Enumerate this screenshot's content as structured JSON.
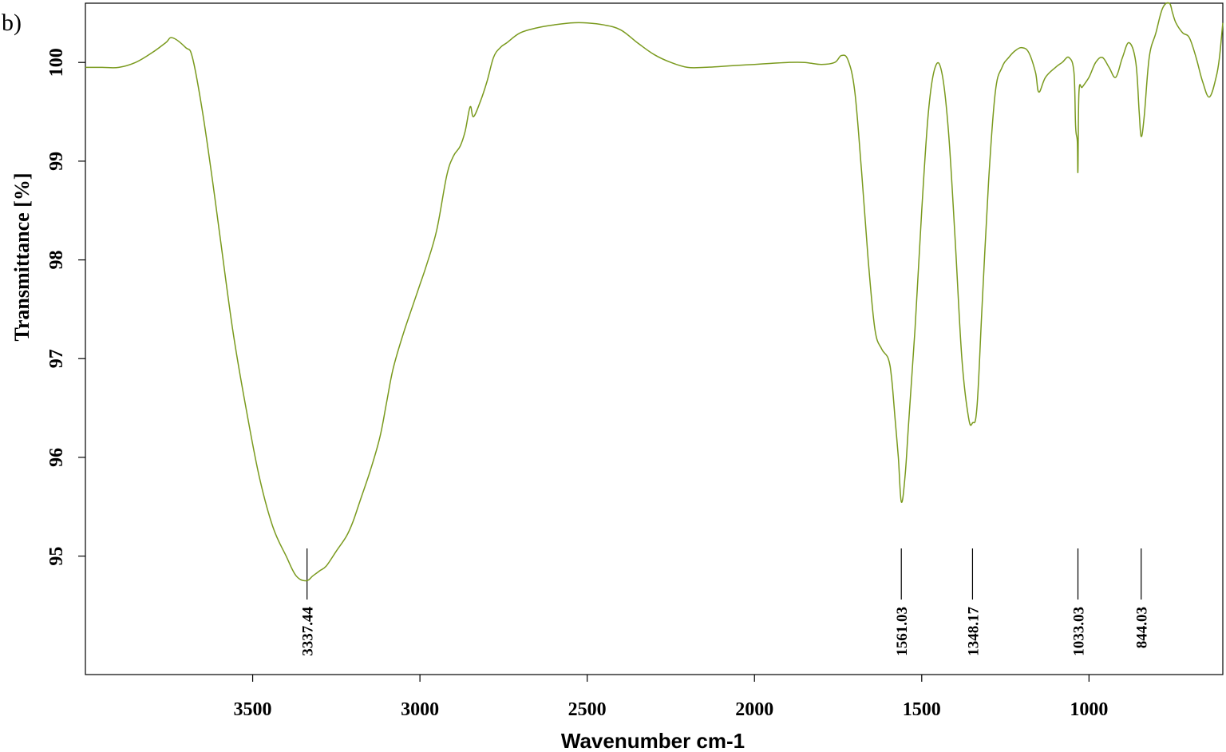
{
  "panel_label": "b)",
  "chart_data": {
    "type": "line",
    "title": "",
    "xlabel": "Wavenumber cm-1",
    "ylabel": "Transmittance [%]",
    "x_reversed": true,
    "xlim": [
      4000,
      600
    ],
    "ylim": [
      93.8,
      100.6
    ],
    "xticks": [
      3500,
      3000,
      2500,
      2000,
      1500,
      1000
    ],
    "xtick_labels": [
      "3500",
      "3000",
      "2500",
      "2000",
      "1500",
      "1000"
    ],
    "yticks": [
      95,
      96,
      97,
      98,
      99,
      100
    ],
    "ytick_labels": [
      "95",
      "96",
      "97",
      "98",
      "99",
      "100"
    ],
    "grid": false,
    "series": [
      {
        "color": "#7a9a1e",
        "x": [
          4000,
          3950,
          3900,
          3850,
          3800,
          3760,
          3740,
          3700,
          3680,
          3650,
          3620,
          3600,
          3560,
          3520,
          3480,
          3440,
          3400,
          3370,
          3340,
          3320,
          3300,
          3280,
          3250,
          3220,
          3200,
          3180,
          3150,
          3120,
          3100,
          3080,
          3050,
          3020,
          3000,
          2980,
          2950,
          2920,
          2900,
          2880,
          2865,
          2850,
          2840,
          2820,
          2800,
          2780,
          2760,
          2740,
          2700,
          2650,
          2600,
          2550,
          2500,
          2450,
          2400,
          2350,
          2300,
          2250,
          2200,
          2150,
          2100,
          2050,
          2000,
          1950,
          1900,
          1850,
          1800,
          1760,
          1740,
          1720,
          1700,
          1680,
          1660,
          1640,
          1620,
          1600,
          1590,
          1580,
          1570,
          1561,
          1550,
          1540,
          1520,
          1500,
          1480,
          1460,
          1440,
          1420,
          1400,
          1380,
          1360,
          1348,
          1335,
          1320,
          1300,
          1280,
          1260,
          1240,
          1220,
          1200,
          1180,
          1160,
          1150,
          1130,
          1100,
          1080,
          1060,
          1045,
          1040,
          1035,
          1033,
          1030,
          1020,
          1000,
          980,
          960,
          940,
          920,
          900,
          880,
          860,
          850,
          844,
          835,
          820,
          800,
          780,
          760,
          750,
          740,
          720,
          700,
          680,
          660,
          640,
          620,
          610,
          600
        ],
        "y": [
          99.95,
          99.95,
          99.95,
          100.0,
          100.1,
          100.2,
          100.25,
          100.15,
          100.05,
          99.5,
          98.8,
          98.3,
          97.3,
          96.5,
          95.8,
          95.3,
          95.0,
          94.8,
          94.75,
          94.8,
          94.85,
          94.9,
          95.05,
          95.2,
          95.35,
          95.55,
          95.85,
          96.2,
          96.55,
          96.9,
          97.25,
          97.55,
          97.75,
          97.95,
          98.3,
          98.85,
          99.05,
          99.15,
          99.3,
          99.55,
          99.45,
          99.6,
          99.8,
          100.05,
          100.15,
          100.2,
          100.3,
          100.35,
          100.38,
          100.4,
          100.4,
          100.38,
          100.33,
          100.2,
          100.08,
          100.0,
          99.95,
          99.95,
          99.96,
          99.97,
          99.98,
          99.99,
          100.0,
          100.0,
          99.98,
          100.0,
          100.07,
          100.02,
          99.7,
          98.9,
          98.0,
          97.3,
          97.1,
          97.0,
          96.8,
          96.4,
          96.0,
          95.55,
          95.8,
          96.3,
          97.3,
          98.5,
          99.5,
          99.95,
          99.9,
          99.3,
          98.2,
          97.0,
          96.4,
          96.35,
          96.5,
          97.5,
          98.8,
          99.7,
          99.95,
          100.05,
          100.12,
          100.15,
          100.1,
          99.9,
          99.7,
          99.85,
          99.95,
          100.0,
          100.05,
          99.9,
          99.35,
          99.2,
          98.9,
          99.7,
          99.75,
          99.85,
          100.0,
          100.05,
          99.95,
          99.85,
          100.05,
          100.2,
          100.0,
          99.5,
          99.25,
          99.45,
          100.05,
          100.3,
          100.55,
          100.6,
          100.5,
          100.4,
          100.3,
          100.25,
          100.05,
          99.8,
          99.65,
          99.85,
          100.05,
          100.4
        ]
      }
    ],
    "peak_markers": [
      {
        "x": 3337.44,
        "label": "3337.44"
      },
      {
        "x": 1561.03,
        "label": "1561.03"
      },
      {
        "x": 1348.17,
        "label": "1348.17"
      },
      {
        "x": 1033.03,
        "label": "1033.03"
      },
      {
        "x": 844.03,
        "label": "844.03"
      }
    ]
  }
}
